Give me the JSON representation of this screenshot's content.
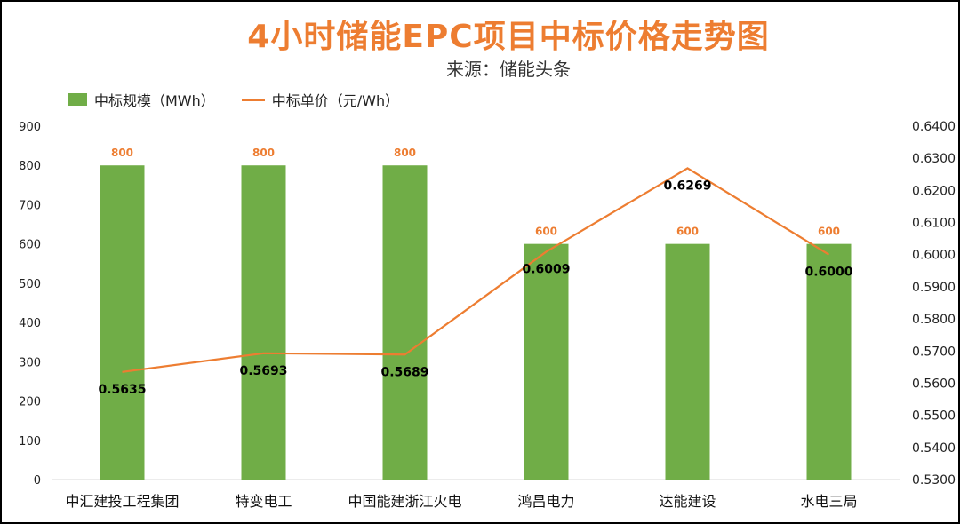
{
  "title": "4小时储能EPC项目中标价格走势图",
  "subtitle": "来源：储能头条",
  "legend": {
    "bar_label": "中标规模（MWh）",
    "line_label": "中标单价（元/Wh）"
  },
  "colors": {
    "bar": "#70AD47",
    "line": "#ED7D31",
    "bar_label": "#ED7D31",
    "line_label": "#000000"
  },
  "chart_data": {
    "type": "bar",
    "categories": [
      "中汇建投工程集团",
      "特变电工",
      "中国能建浙江火电",
      "鸿昌电力",
      "达能建设",
      "水电三局"
    ],
    "series": [
      {
        "name": "中标规模（MWh）",
        "type": "bar",
        "axis": "left",
        "values": [
          800,
          800,
          800,
          600,
          600,
          600
        ],
        "labels": [
          "800",
          "800",
          "800",
          "600",
          "600",
          "600"
        ]
      },
      {
        "name": "中标单价（元/Wh）",
        "type": "line",
        "axis": "right",
        "values": [
          0.5635,
          0.5693,
          0.5689,
          0.6009,
          0.6269,
          0.6
        ],
        "labels": [
          "0.5635",
          "0.5693",
          "0.5689",
          "0.6009",
          "0.6269",
          "0.6000"
        ]
      }
    ],
    "y_left": {
      "min": 0,
      "max": 900,
      "step": 100,
      "ticks": [
        "0",
        "100",
        "200",
        "300",
        "400",
        "500",
        "600",
        "700",
        "800",
        "900"
      ]
    },
    "y_right": {
      "min": 0.53,
      "max": 0.64,
      "step": 0.01,
      "ticks": [
        "0.5300",
        "0.5400",
        "0.5500",
        "0.5600",
        "0.5700",
        "0.5800",
        "0.5900",
        "0.6000",
        "0.6100",
        "0.6200",
        "0.6300",
        "0.6400"
      ]
    },
    "legend_position": "top-left",
    "grid": false
  }
}
